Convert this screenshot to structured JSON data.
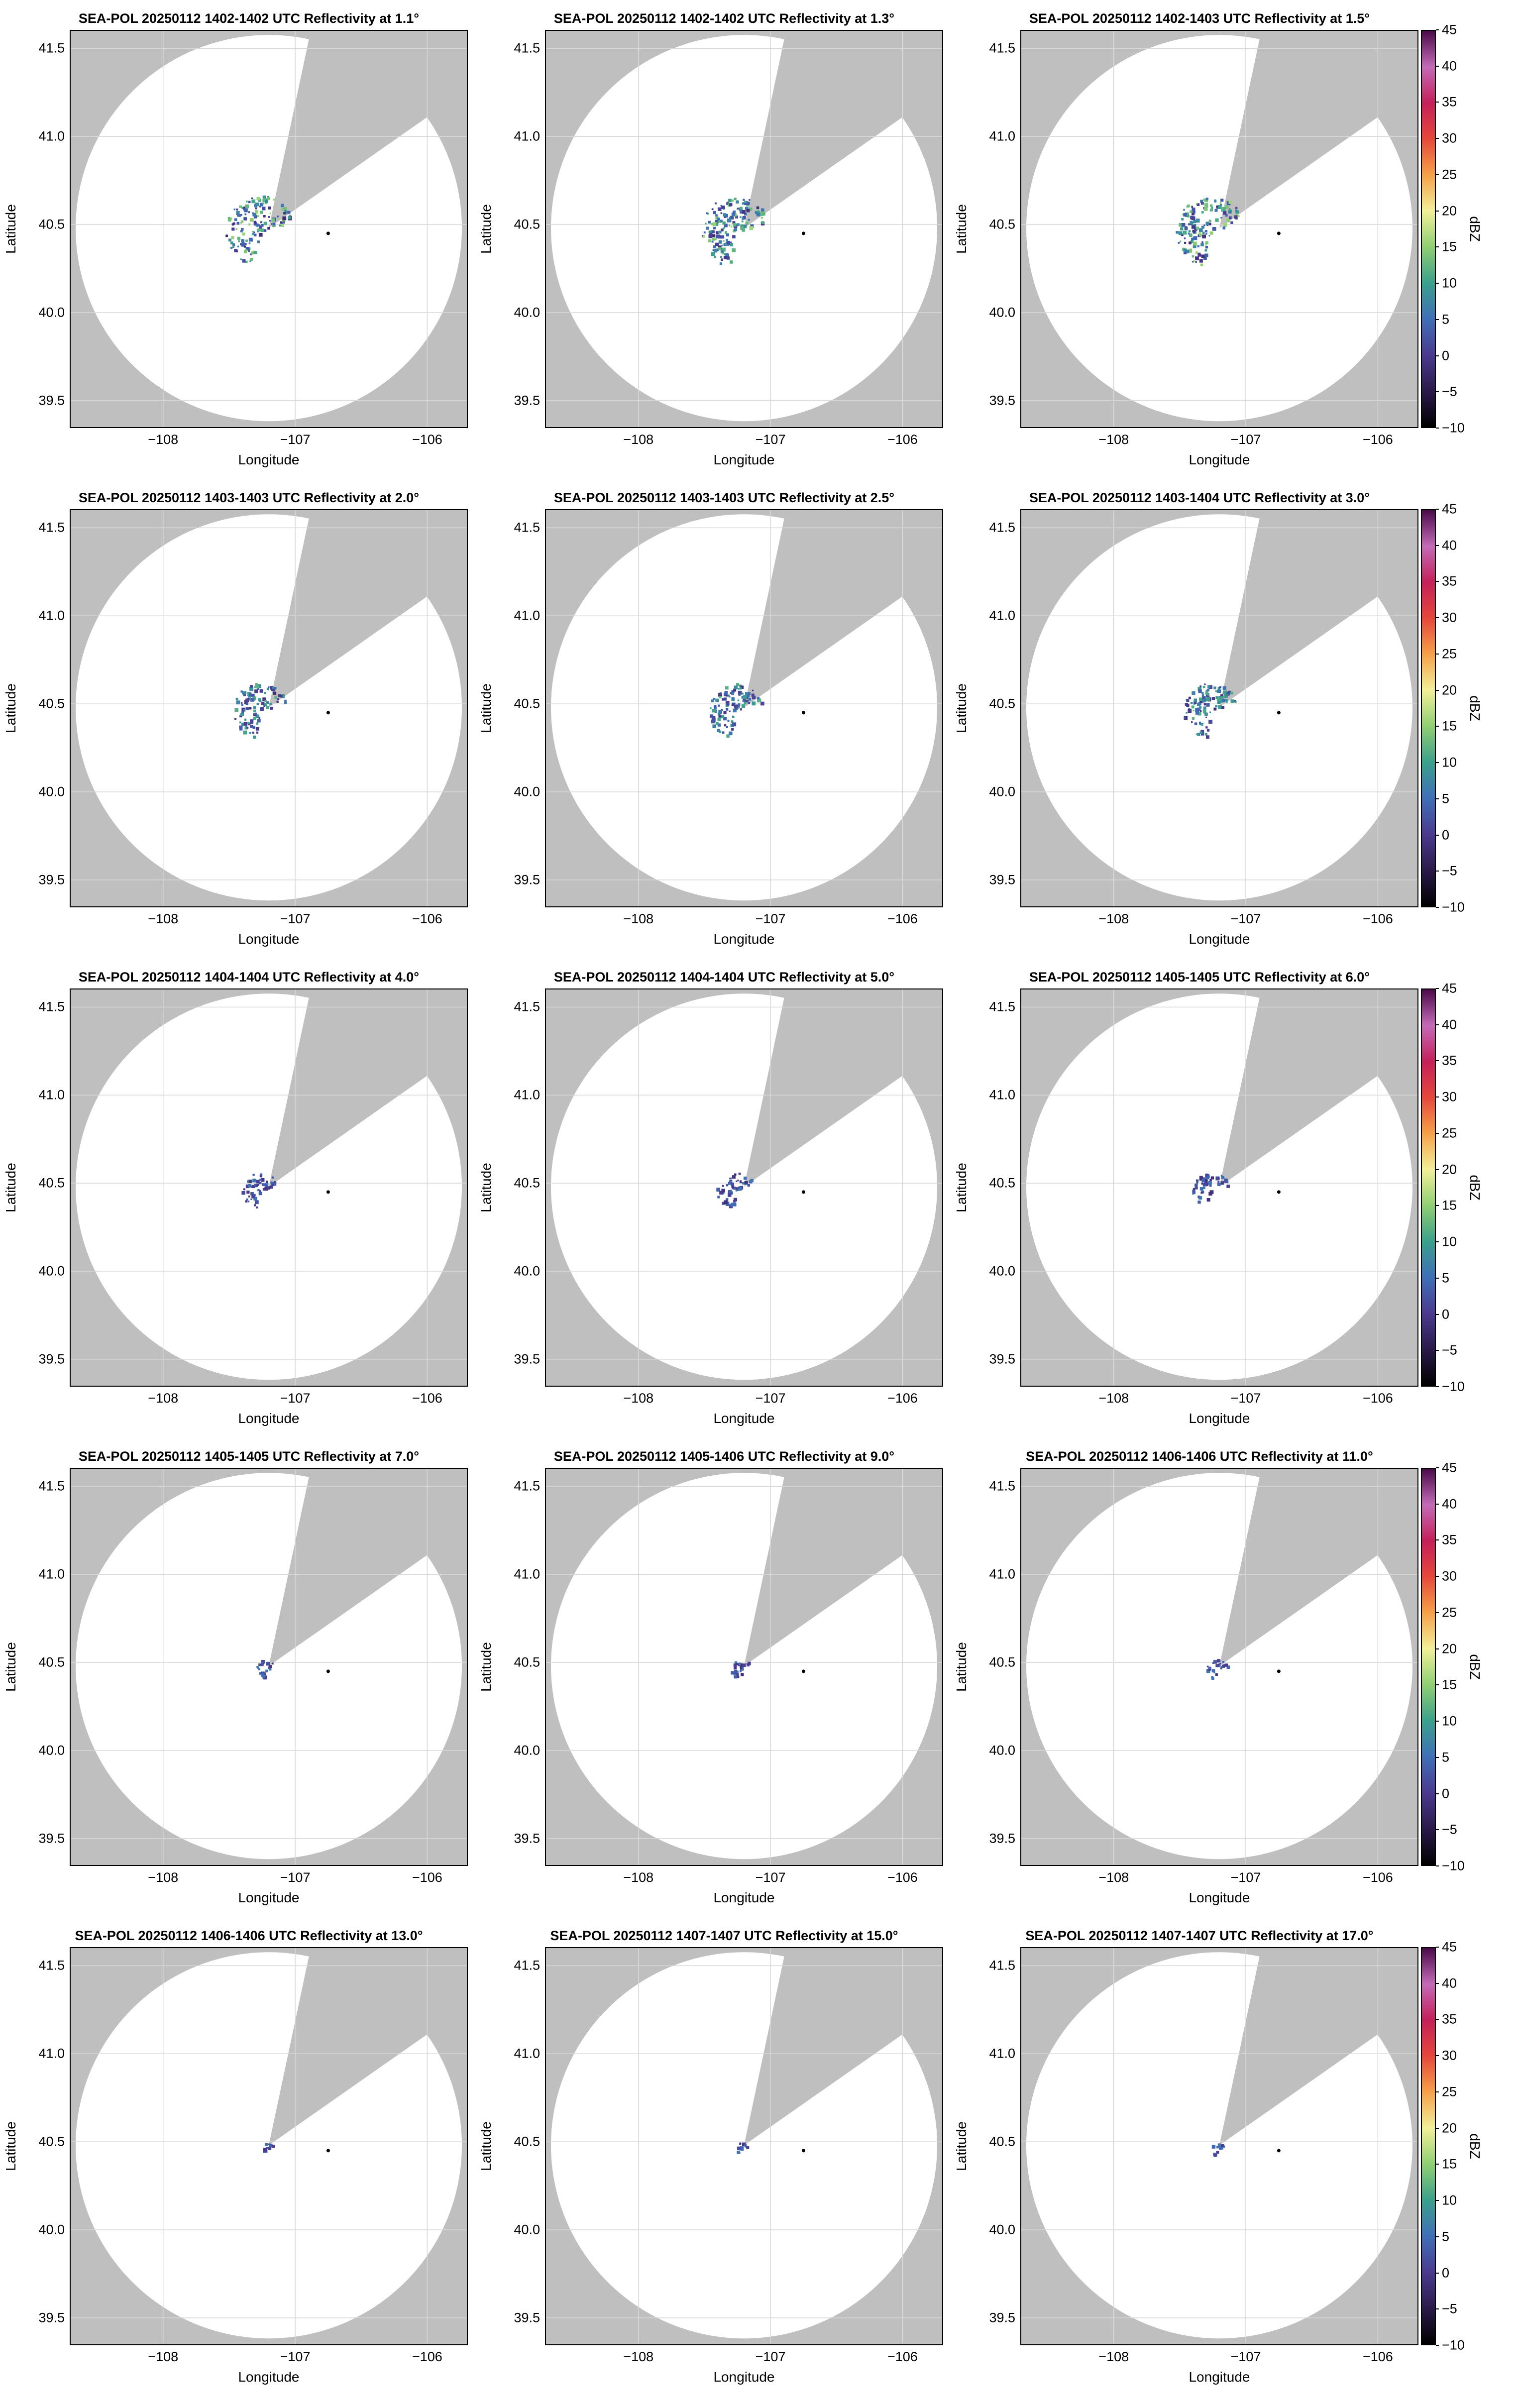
{
  "figure": {
    "colormap_stops": [
      {
        "value": -10,
        "color": "#000000"
      },
      {
        "value": -5,
        "color": "#2a1a4a"
      },
      {
        "value": 0,
        "color": "#4b3a8f"
      },
      {
        "value": 5,
        "color": "#3f6fb8"
      },
      {
        "value": 10,
        "color": "#3ba08c"
      },
      {
        "value": 15,
        "color": "#8fcf72"
      },
      {
        "value": 20,
        "color": "#f2ef9a"
      },
      {
        "value": 25,
        "color": "#f6a04a"
      },
      {
        "value": 30,
        "color": "#e5483a"
      },
      {
        "value": 35,
        "color": "#c4205a"
      },
      {
        "value": 40,
        "color": "#c46ab8"
      },
      {
        "value": 45,
        "color": "#4a0a4a"
      }
    ],
    "background_color": "#bfbfbf",
    "coverage_color": "#ffffff"
  },
  "chart_data": [
    {
      "type": "heatmap",
      "title": "SEA-POL 20250112 1402-1402 UTC Reflectivity at 1.1°",
      "xlabel": "Longitude",
      "ylabel": "Latitude",
      "xlim": [
        -108.7,
        -105.7
      ],
      "ylim": [
        39.35,
        41.6
      ],
      "xticks": [
        "−108",
        "−107",
        "−106"
      ],
      "yticks": [
        "39.5",
        "40.0",
        "40.5",
        "41.0",
        "41.5"
      ],
      "radar_site": {
        "lon": -107.2,
        "lat": 40.48
      },
      "marker": {
        "lon": -106.75,
        "lat": 40.45
      },
      "echo_extent": "wide",
      "grid": true,
      "colorbar": false
    },
    {
      "type": "heatmap",
      "title": "SEA-POL 20250112 1402-1402 UTC Reflectivity at 1.3°",
      "xlabel": "Longitude",
      "ylabel": "Latitude",
      "xlim": [
        -108.7,
        -105.7
      ],
      "ylim": [
        39.35,
        41.6
      ],
      "xticks": [
        "−108",
        "−107",
        "−106"
      ],
      "yticks": [
        "39.5",
        "40.0",
        "40.5",
        "41.0",
        "41.5"
      ],
      "radar_site": {
        "lon": -107.2,
        "lat": 40.48
      },
      "marker": {
        "lon": -106.75,
        "lat": 40.45
      },
      "echo_extent": "wide",
      "grid": true,
      "colorbar": false
    },
    {
      "type": "heatmap",
      "title": "SEA-POL 20250112 1402-1403 UTC Reflectivity at 1.5°",
      "xlabel": "Longitude",
      "ylabel": "Latitude",
      "xlim": [
        -108.7,
        -105.7
      ],
      "ylim": [
        39.35,
        41.6
      ],
      "xticks": [
        "−108",
        "−107",
        "−106"
      ],
      "yticks": [
        "39.5",
        "40.0",
        "40.5",
        "41.0",
        "41.5"
      ],
      "radar_site": {
        "lon": -107.2,
        "lat": 40.48
      },
      "marker": {
        "lon": -106.75,
        "lat": 40.45
      },
      "echo_extent": "wide",
      "grid": true,
      "colorbar": true,
      "colorbar_label": "dBZ",
      "colorbar_ticks": [
        "45",
        "40",
        "35",
        "30",
        "25",
        "20",
        "15",
        "10",
        "5",
        "0",
        "−5",
        "−10"
      ]
    },
    {
      "type": "heatmap",
      "title": "SEA-POL 20250112 1403-1403 UTC Reflectivity at 2.0°",
      "xlabel": "Longitude",
      "ylabel": "Latitude",
      "xlim": [
        -108.7,
        -105.7
      ],
      "ylim": [
        39.35,
        41.6
      ],
      "xticks": [
        "−108",
        "−107",
        "−106"
      ],
      "yticks": [
        "39.5",
        "40.0",
        "40.5",
        "41.0",
        "41.5"
      ],
      "radar_site": {
        "lon": -107.2,
        "lat": 40.48
      },
      "marker": {
        "lon": -106.75,
        "lat": 40.45
      },
      "echo_extent": "medium",
      "grid": true,
      "colorbar": false
    },
    {
      "type": "heatmap",
      "title": "SEA-POL 20250112 1403-1403 UTC Reflectivity at 2.5°",
      "xlabel": "Longitude",
      "ylabel": "Latitude",
      "xlim": [
        -108.7,
        -105.7
      ],
      "ylim": [
        39.35,
        41.6
      ],
      "xticks": [
        "−108",
        "−107",
        "−106"
      ],
      "yticks": [
        "39.5",
        "40.0",
        "40.5",
        "41.0",
        "41.5"
      ],
      "radar_site": {
        "lon": -107.2,
        "lat": 40.48
      },
      "marker": {
        "lon": -106.75,
        "lat": 40.45
      },
      "echo_extent": "medium",
      "grid": true,
      "colorbar": false
    },
    {
      "type": "heatmap",
      "title": "SEA-POL 20250112 1403-1404 UTC Reflectivity at 3.0°",
      "xlabel": "Longitude",
      "ylabel": "Latitude",
      "xlim": [
        -108.7,
        -105.7
      ],
      "ylim": [
        39.35,
        41.6
      ],
      "xticks": [
        "−108",
        "−107",
        "−106"
      ],
      "yticks": [
        "39.5",
        "40.0",
        "40.5",
        "41.0",
        "41.5"
      ],
      "radar_site": {
        "lon": -107.2,
        "lat": 40.48
      },
      "marker": {
        "lon": -106.75,
        "lat": 40.45
      },
      "echo_extent": "medium",
      "grid": true,
      "colorbar": true,
      "colorbar_label": "dBZ",
      "colorbar_ticks": [
        "45",
        "40",
        "35",
        "30",
        "25",
        "20",
        "15",
        "10",
        "5",
        "0",
        "−5",
        "−10"
      ]
    },
    {
      "type": "heatmap",
      "title": "SEA-POL 20250112 1404-1404 UTC Reflectivity at 4.0°",
      "xlabel": "Longitude",
      "ylabel": "Latitude",
      "xlim": [
        -108.7,
        -105.7
      ],
      "ylim": [
        39.35,
        41.6
      ],
      "xticks": [
        "−108",
        "−107",
        "−106"
      ],
      "yticks": [
        "39.5",
        "40.0",
        "40.5",
        "41.0",
        "41.5"
      ],
      "radar_site": {
        "lon": -107.2,
        "lat": 40.48
      },
      "marker": {
        "lon": -106.75,
        "lat": 40.45
      },
      "echo_extent": "small",
      "grid": true,
      "colorbar": false
    },
    {
      "type": "heatmap",
      "title": "SEA-POL 20250112 1404-1404 UTC Reflectivity at 5.0°",
      "xlabel": "Longitude",
      "ylabel": "Latitude",
      "xlim": [
        -108.7,
        -105.7
      ],
      "ylim": [
        39.35,
        41.6
      ],
      "xticks": [
        "−108",
        "−107",
        "−106"
      ],
      "yticks": [
        "39.5",
        "40.0",
        "40.5",
        "41.0",
        "41.5"
      ],
      "radar_site": {
        "lon": -107.2,
        "lat": 40.48
      },
      "marker": {
        "lon": -106.75,
        "lat": 40.45
      },
      "echo_extent": "small",
      "grid": true,
      "colorbar": false
    },
    {
      "type": "heatmap",
      "title": "SEA-POL 20250112 1405-1405 UTC Reflectivity at 6.0°",
      "xlabel": "Longitude",
      "ylabel": "Latitude",
      "xlim": [
        -108.7,
        -105.7
      ],
      "ylim": [
        39.35,
        41.6
      ],
      "xticks": [
        "−108",
        "−107",
        "−106"
      ],
      "yticks": [
        "39.5",
        "40.0",
        "40.5",
        "41.0",
        "41.5"
      ],
      "radar_site": {
        "lon": -107.2,
        "lat": 40.48
      },
      "marker": {
        "lon": -106.75,
        "lat": 40.45
      },
      "echo_extent": "small",
      "grid": true,
      "colorbar": true,
      "colorbar_label": "dBZ",
      "colorbar_ticks": [
        "45",
        "40",
        "35",
        "30",
        "25",
        "20",
        "15",
        "10",
        "5",
        "0",
        "−5",
        "−10"
      ]
    },
    {
      "type": "heatmap",
      "title": "SEA-POL 20250112 1405-1405 UTC Reflectivity at 7.0°",
      "xlabel": "Longitude",
      "ylabel": "Latitude",
      "xlim": [
        -108.7,
        -105.7
      ],
      "ylim": [
        39.35,
        41.6
      ],
      "xticks": [
        "−108",
        "−107",
        "−106"
      ],
      "yticks": [
        "39.5",
        "40.0",
        "40.5",
        "41.0",
        "41.5"
      ],
      "radar_site": {
        "lon": -107.2,
        "lat": 40.48
      },
      "marker": {
        "lon": -106.75,
        "lat": 40.45
      },
      "echo_extent": "tiny",
      "grid": true,
      "colorbar": false
    },
    {
      "type": "heatmap",
      "title": "SEA-POL 20250112 1405-1406 UTC Reflectivity at 9.0°",
      "xlabel": "Longitude",
      "ylabel": "Latitude",
      "xlim": [
        -108.7,
        -105.7
      ],
      "ylim": [
        39.35,
        41.6
      ],
      "xticks": [
        "−108",
        "−107",
        "−106"
      ],
      "yticks": [
        "39.5",
        "40.0",
        "40.5",
        "41.0",
        "41.5"
      ],
      "radar_site": {
        "lon": -107.2,
        "lat": 40.48
      },
      "marker": {
        "lon": -106.75,
        "lat": 40.45
      },
      "echo_extent": "tiny",
      "grid": true,
      "colorbar": false
    },
    {
      "type": "heatmap",
      "title": "SEA-POL 20250112 1406-1406 UTC Reflectivity at 11.0°",
      "xlabel": "Longitude",
      "ylabel": "Latitude",
      "xlim": [
        -108.7,
        -105.7
      ],
      "ylim": [
        39.35,
        41.6
      ],
      "xticks": [
        "−108",
        "−107",
        "−106"
      ],
      "yticks": [
        "39.5",
        "40.0",
        "40.5",
        "41.0",
        "41.5"
      ],
      "radar_site": {
        "lon": -107.2,
        "lat": 40.48
      },
      "marker": {
        "lon": -106.75,
        "lat": 40.45
      },
      "echo_extent": "tiny",
      "grid": true,
      "colorbar": true,
      "colorbar_label": "dBZ",
      "colorbar_ticks": [
        "45",
        "40",
        "35",
        "30",
        "25",
        "20",
        "15",
        "10",
        "5",
        "0",
        "−5",
        "−10"
      ]
    },
    {
      "type": "heatmap",
      "title": "SEA-POL 20250112 1406-1406 UTC Reflectivity at 13.0°",
      "xlabel": "Longitude",
      "ylabel": "Latitude",
      "xlim": [
        -108.7,
        -105.7
      ],
      "ylim": [
        39.35,
        41.6
      ],
      "xticks": [
        "−108",
        "−107",
        "−106"
      ],
      "yticks": [
        "39.5",
        "40.0",
        "40.5",
        "41.0",
        "41.5"
      ],
      "radar_site": {
        "lon": -107.2,
        "lat": 40.48
      },
      "marker": {
        "lon": -106.75,
        "lat": 40.45
      },
      "echo_extent": "minimal",
      "grid": true,
      "colorbar": false
    },
    {
      "type": "heatmap",
      "title": "SEA-POL 20250112 1407-1407 UTC Reflectivity at 15.0°",
      "xlabel": "Longitude",
      "ylabel": "Latitude",
      "xlim": [
        -108.7,
        -105.7
      ],
      "ylim": [
        39.35,
        41.6
      ],
      "xticks": [
        "−108",
        "−107",
        "−106"
      ],
      "yticks": [
        "39.5",
        "40.0",
        "40.5",
        "41.0",
        "41.5"
      ],
      "radar_site": {
        "lon": -107.2,
        "lat": 40.48
      },
      "marker": {
        "lon": -106.75,
        "lat": 40.45
      },
      "echo_extent": "minimal",
      "grid": true,
      "colorbar": false
    },
    {
      "type": "heatmap",
      "title": "SEA-POL 20250112 1407-1407 UTC Reflectivity at 17.0°",
      "xlabel": "Longitude",
      "ylabel": "Latitude",
      "xlim": [
        -108.7,
        -105.7
      ],
      "ylim": [
        39.35,
        41.6
      ],
      "xticks": [
        "−108",
        "−107",
        "−106"
      ],
      "yticks": [
        "39.5",
        "40.0",
        "40.5",
        "41.0",
        "41.5"
      ],
      "radar_site": {
        "lon": -107.2,
        "lat": 40.48
      },
      "marker": {
        "lon": -106.75,
        "lat": 40.45
      },
      "echo_extent": "minimal",
      "grid": true,
      "colorbar": true,
      "colorbar_label": "dBZ",
      "colorbar_ticks": [
        "45",
        "40",
        "35",
        "30",
        "25",
        "20",
        "15",
        "10",
        "5",
        "0",
        "−5",
        "−10"
      ]
    }
  ]
}
